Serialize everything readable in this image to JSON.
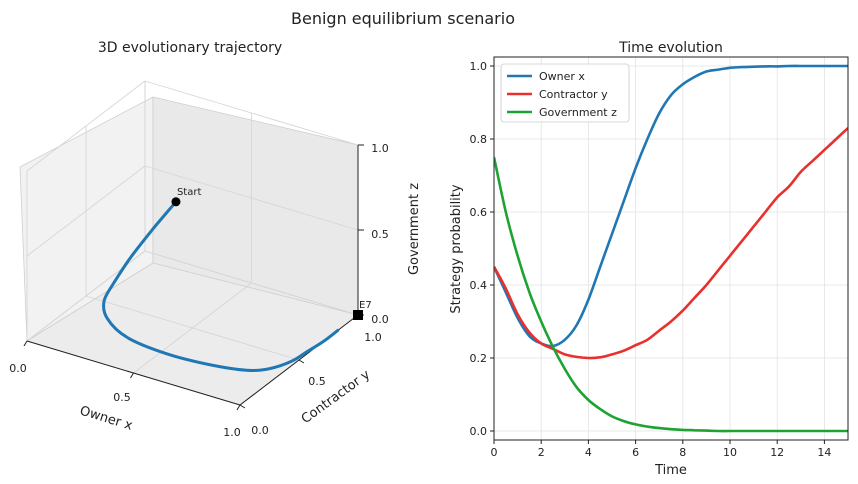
{
  "suptitle": "Benign equilibrium scenario",
  "colors": {
    "owner": "#1f77b4",
    "contractor": "#e8302e",
    "government": "#1ea232",
    "trajectory": "#1f77b4",
    "grid": "#e3e3e3",
    "pane": "#f2f2f2"
  },
  "chart_data": [
    {
      "type": "line",
      "title": "3D evolutionary trajectory",
      "projection": "3d",
      "xlabel": "Owner x",
      "ylabel": "Contractor y",
      "zlabel": "Government z",
      "xlim": [
        0,
        1
      ],
      "ylim": [
        0,
        1
      ],
      "zlim": [
        0,
        1
      ],
      "x_ticks": [
        "0.0",
        "0.5",
        "1.0"
      ],
      "y_ticks": [
        "0.0",
        "0.5",
        "1.0"
      ],
      "z_ticks": [
        "0.0",
        "0.5",
        "1.0"
      ],
      "grid": true,
      "series": [
        {
          "points": [
            [
              0.45,
              0.45,
              0.75
            ],
            [
              0.38,
              0.38,
              0.6
            ],
            [
              0.31,
              0.32,
              0.44
            ],
            [
              0.26,
              0.27,
              0.3
            ],
            [
              0.233,
              0.233,
              0.2
            ],
            [
              0.26,
              0.21,
              0.12
            ],
            [
              0.36,
              0.2,
              0.05
            ],
            [
              0.54,
              0.21,
              0.017
            ],
            [
              0.72,
              0.24,
              0.006
            ],
            [
              0.87,
              0.29,
              0.002
            ],
            [
              0.94,
              0.36,
              0.001
            ],
            [
              0.98,
              0.47,
              0
            ],
            [
              0.99,
              0.58,
              0
            ],
            [
              1.0,
              0.7,
              0
            ],
            [
              1.0,
              0.83,
              0
            ]
          ]
        }
      ],
      "annotations": [
        {
          "text": "Start",
          "point": [
            0.45,
            0.45,
            0.75
          ]
        },
        {
          "text": "E7",
          "point": [
            1.0,
            1.0,
            0.0
          ]
        }
      ]
    },
    {
      "type": "line",
      "title": "Time evolution",
      "xlabel": "Time",
      "ylabel": "Strategy probability",
      "xlim": [
        0,
        15
      ],
      "ylim": [
        0,
        1
      ],
      "x_ticks": [
        "0",
        "2",
        "4",
        "6",
        "8",
        "10",
        "12",
        "14"
      ],
      "y_ticks": [
        "0.0",
        "0.2",
        "0.4",
        "0.6",
        "0.8",
        "1.0"
      ],
      "grid": true,
      "legend_position": "upper-left",
      "x": [
        0,
        0.5,
        1,
        1.5,
        2,
        2.5,
        3,
        3.5,
        4,
        4.5,
        5,
        5.5,
        6,
        6.5,
        7,
        7.5,
        8,
        8.5,
        9,
        9.5,
        10,
        10.5,
        11,
        11.5,
        12,
        12.5,
        13,
        13.5,
        14,
        14.5,
        15
      ],
      "series": [
        {
          "name": "Owner x",
          "values": [
            0.45,
            0.38,
            0.31,
            0.26,
            0.24,
            0.233,
            0.25,
            0.29,
            0.36,
            0.45,
            0.54,
            0.63,
            0.72,
            0.8,
            0.87,
            0.92,
            0.95,
            0.97,
            0.985,
            0.99,
            0.995,
            0.997,
            0.998,
            0.999,
            0.999,
            1.0,
            1.0,
            1.0,
            1.0,
            1.0,
            1.0
          ]
        },
        {
          "name": "Contractor y",
          "values": [
            0.45,
            0.39,
            0.32,
            0.27,
            0.24,
            0.225,
            0.21,
            0.203,
            0.2,
            0.202,
            0.21,
            0.22,
            0.235,
            0.25,
            0.275,
            0.3,
            0.33,
            0.365,
            0.4,
            0.44,
            0.48,
            0.52,
            0.56,
            0.6,
            0.64,
            0.67,
            0.71,
            0.74,
            0.77,
            0.8,
            0.83
          ]
        },
        {
          "name": "Government z",
          "values": [
            0.75,
            0.6,
            0.48,
            0.38,
            0.3,
            0.23,
            0.17,
            0.12,
            0.085,
            0.06,
            0.04,
            0.027,
            0.018,
            0.012,
            0.008,
            0.005,
            0.003,
            0.002,
            0.001,
            0.0,
            0.0,
            0.0,
            0.0,
            0.0,
            0.0,
            0.0,
            0.0,
            0.0,
            0.0,
            0.0,
            0.0
          ]
        }
      ]
    }
  ]
}
